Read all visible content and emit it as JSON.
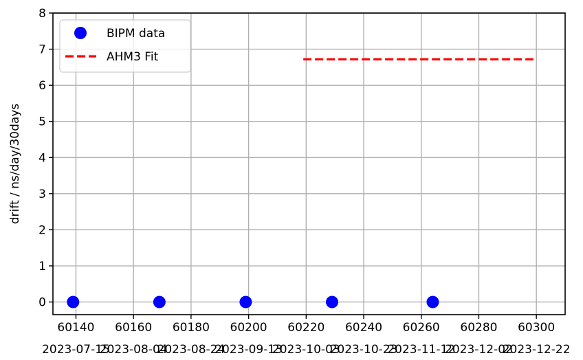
{
  "chart_data": {
    "type": "scatter",
    "title": "",
    "xlabel": "",
    "ylabel": "drift / ns/day/30days",
    "xlim": [
      60132,
      60310
    ],
    "ylim": [
      -0.35,
      8
    ],
    "x_ticks": [
      60140,
      60160,
      60180,
      60200,
      60220,
      60240,
      60260,
      60280,
      60300
    ],
    "x_tick_labels": [
      "60140",
      "60160",
      "60180",
      "60200",
      "60220",
      "60240",
      "60260",
      "60280",
      "60300"
    ],
    "x2_tick_labels": [
      "2023-07-15",
      "2023-08-04",
      "2023-08-24",
      "2023-09-13",
      "2023-10-03",
      "2023-10-23",
      "2023-11-12",
      "2023-12-02",
      "2023-12-22"
    ],
    "y_ticks": [
      0,
      1,
      2,
      3,
      4,
      5,
      6,
      7,
      8
    ],
    "y_tick_labels": [
      "0",
      "1",
      "2",
      "3",
      "4",
      "5",
      "6",
      "7",
      "8"
    ],
    "grid": true,
    "legend_position": "top-left",
    "series": [
      {
        "name": "BIPM data",
        "kind": "scatter",
        "color": "#0000ff",
        "x": [
          60139,
          60169,
          60199,
          60229,
          60264
        ],
        "y": [
          0,
          0,
          0,
          0,
          0
        ]
      },
      {
        "name": "AHM3 Fit",
        "kind": "line",
        "style": "dashed",
        "color": "#ff0000",
        "x": [
          60219,
          60299
        ],
        "y": [
          6.72,
          6.72
        ]
      }
    ]
  }
}
